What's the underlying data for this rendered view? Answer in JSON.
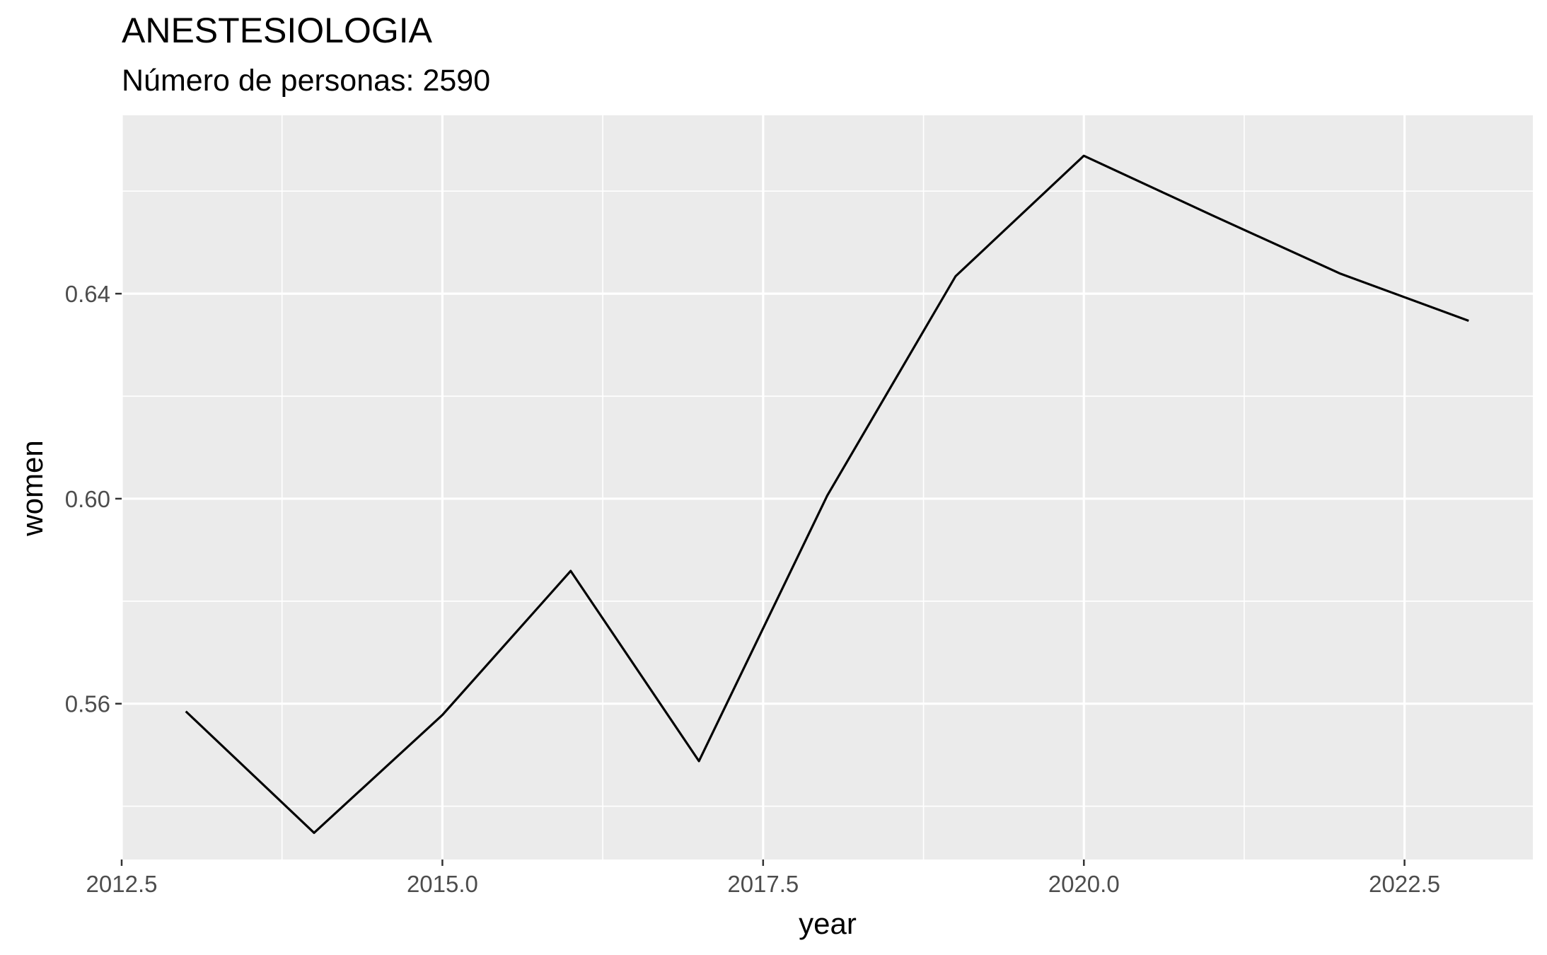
{
  "chart_data": {
    "type": "line",
    "title": "ANESTESIOLOGIA",
    "subtitle": "Número de personas: 2590",
    "xlabel": "year",
    "ylabel": "women",
    "xlim": [
      2012.5,
      2023.5
    ],
    "ylim": [
      0.5296,
      0.6748
    ],
    "x_ticks": [
      2012.5,
      2015.0,
      2017.5,
      2020.0,
      2022.5
    ],
    "x_tick_labels": [
      "2012.5",
      "2015.0",
      "2017.5",
      "2020.0",
      "2022.5"
    ],
    "y_ticks": [
      0.56,
      0.6,
      0.64
    ],
    "y_tick_labels": [
      "0.56",
      "0.60",
      "0.64"
    ],
    "grid": true,
    "line_color": "#000000",
    "panel_color": "#ebebeb",
    "series": [
      {
        "x": [
          2013,
          2014,
          2015,
          2016,
          2017,
          2018,
          2019,
          2020,
          2021,
          2022,
          2023
        ],
        "values": [
          0.5585,
          0.5348,
          0.5578,
          0.5859,
          0.5488,
          0.6006,
          0.6434,
          0.6669,
          0.6553,
          0.6439,
          0.6347
        ]
      }
    ]
  }
}
